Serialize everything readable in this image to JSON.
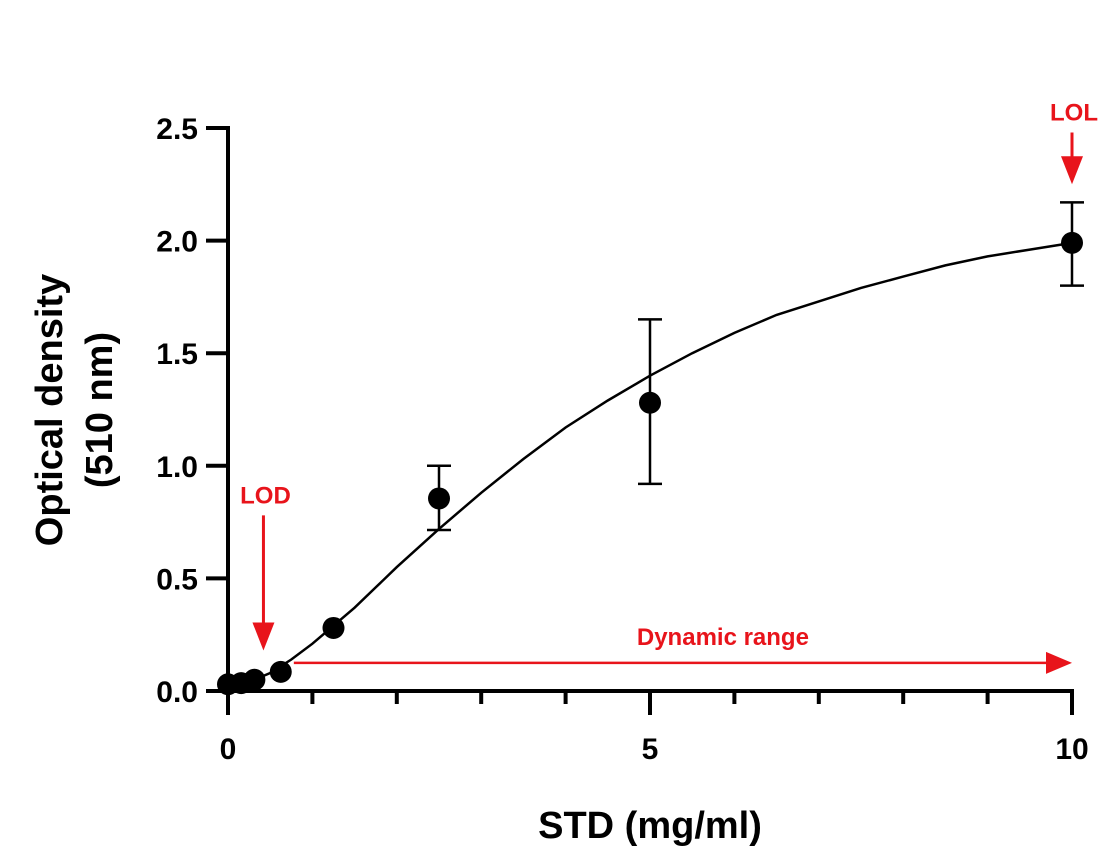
{
  "chart_data": {
    "type": "scatter",
    "title": "",
    "xlabel": "STD (mg/ml)",
    "ylabel_lines": [
      "Optical density",
      "(510 nm)"
    ],
    "xlim": [
      0,
      10
    ],
    "ylim": [
      0,
      2.5
    ],
    "x_major_ticks": [
      0,
      5,
      10
    ],
    "x_tick_labels": [
      "0",
      "5",
      "10"
    ],
    "x_minor_ticks": [
      1,
      2,
      3,
      4,
      6,
      7,
      8,
      9
    ],
    "y_ticks": [
      0,
      0.5,
      1.0,
      1.5,
      2.0,
      2.5
    ],
    "y_tick_labels": [
      "0.0",
      "0.5",
      "1.0",
      "1.5",
      "2.0",
      "2.5"
    ],
    "grid": false,
    "series": [
      {
        "name": "STD",
        "marker": "filled-circle",
        "color": "#000000",
        "points": [
          {
            "x": 0,
            "y": 0.03,
            "err_low": null,
            "err_high": null
          },
          {
            "x": 0.156,
            "y": 0.035,
            "err_low": null,
            "err_high": null
          },
          {
            "x": 0.3125,
            "y": 0.05,
            "err_low": null,
            "err_high": null
          },
          {
            "x": 0.625,
            "y": 0.085,
            "err_low": null,
            "err_high": null
          },
          {
            "x": 1.25,
            "y": 0.28,
            "err_low": null,
            "err_high": null
          },
          {
            "x": 2.5,
            "y": 0.855,
            "err_low": 0.715,
            "err_high": 1.0
          },
          {
            "x": 5,
            "y": 1.28,
            "err_low": 0.92,
            "err_high": 1.65
          },
          {
            "x": 10,
            "y": 1.99,
            "err_low": 1.8,
            "err_high": 2.17
          }
        ]
      }
    ],
    "fit_curve": {
      "name": "sigmoidal fit",
      "color": "#000000",
      "x": [
        0.0,
        0.25,
        0.5,
        0.75,
        1.0,
        1.25,
        1.5,
        1.75,
        2.0,
        2.5,
        3.0,
        3.5,
        4.0,
        4.5,
        5.0,
        5.5,
        6.0,
        6.5,
        7.0,
        7.5,
        8.0,
        8.5,
        9.0,
        9.5,
        10.0
      ],
      "y": [
        0.02,
        0.04,
        0.08,
        0.14,
        0.21,
        0.29,
        0.37,
        0.46,
        0.55,
        0.72,
        0.88,
        1.03,
        1.17,
        1.29,
        1.4,
        1.5,
        1.59,
        1.67,
        1.73,
        1.79,
        1.84,
        1.89,
        1.93,
        1.96,
        1.99
      ]
    },
    "annotations": [
      {
        "text": "LOD",
        "color": "#e8141b",
        "type": "down-arrow",
        "x": 0.42,
        "y_from": 0.78,
        "y_to": 0.18
      },
      {
        "text": "LOL",
        "color": "#e8141b",
        "type": "down-arrow",
        "x": 10,
        "y_from": 2.48,
        "y_to": 2.25
      },
      {
        "text": "Dynamic range",
        "color": "#e8141b",
        "type": "right-arrow",
        "x_from": 0.78,
        "x_to": 10,
        "y": 0.125
      }
    ]
  }
}
